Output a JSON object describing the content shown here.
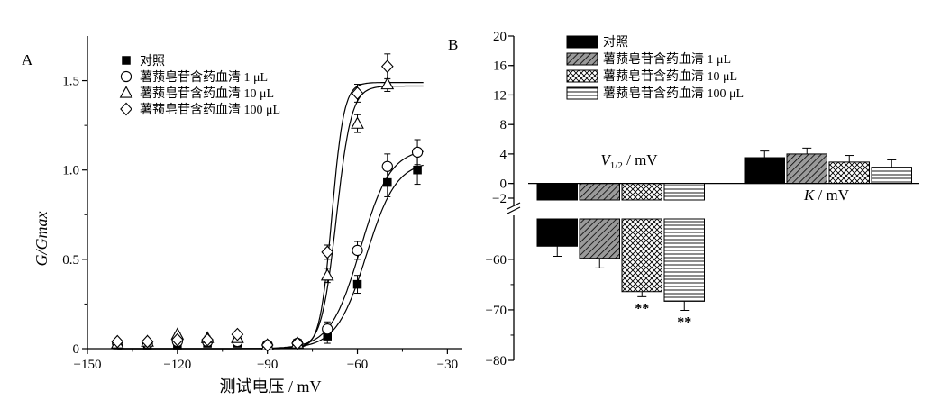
{
  "chart_data": [
    {
      "panel_label": "A",
      "type": "scatter",
      "xlabel": "测试电压 / mV",
      "ylabel": "G/Gmax",
      "xlim": [
        -150,
        -25
      ],
      "ylim": [
        0,
        1.75
      ],
      "xticks": [
        -150,
        -120,
        -90,
        -60,
        -30
      ],
      "xtick_labels": [
        "−150",
        "−120",
        "−90",
        "−60",
        "−30"
      ],
      "yticks": [
        0,
        0.5,
        1.0,
        1.5
      ],
      "ytick_labels": [
        "0",
        "0.5",
        "1.0",
        "1.5"
      ],
      "legend_position": "top-left",
      "x": [
        -140,
        -130,
        -120,
        -110,
        -100,
        -90,
        -80,
        -70,
        -60,
        -50,
        -40
      ],
      "series": [
        {
          "name": "对照",
          "marker": "filled-square",
          "values": [
            0.02,
            0.02,
            0.02,
            0.03,
            0.03,
            0.02,
            0.03,
            0.07,
            0.36,
            0.93,
            1.0
          ],
          "errors": [
            0.01,
            0.01,
            0.01,
            0.01,
            0.01,
            0.01,
            0.01,
            0.04,
            0.05,
            0.08,
            0.08
          ]
        },
        {
          "name": "薯蓣皂苷含药血清 1 μL",
          "marker": "open-circle",
          "values": [
            0.03,
            0.03,
            0.04,
            0.04,
            0.04,
            0.02,
            0.03,
            0.11,
            0.55,
            1.02,
            1.1
          ],
          "errors": [
            0.01,
            0.01,
            0.01,
            0.01,
            0.01,
            0.01,
            0.01,
            0.04,
            0.05,
            0.07,
            0.07
          ]
        },
        {
          "name": "薯蓣皂苷含药血清 10 μL",
          "marker": "open-triangle",
          "values": [
            0.03,
            0.04,
            0.08,
            0.06,
            0.06,
            0.02,
            0.03,
            0.41,
            1.26,
            1.48,
            null
          ],
          "errors": [
            0.01,
            0.01,
            0.01,
            0.01,
            0.01,
            0.01,
            0.01,
            0.04,
            0.05,
            0.04,
            null
          ]
        },
        {
          "name": "薯蓣皂苷含药血清 100 μL",
          "marker": "open-diamond",
          "values": [
            0.04,
            0.04,
            0.05,
            0.05,
            0.08,
            0.02,
            0.03,
            0.54,
            1.43,
            1.58,
            null
          ],
          "errors": [
            0.01,
            0.01,
            0.01,
            0.01,
            0.01,
            0.01,
            0.01,
            0.04,
            0.05,
            0.07,
            null
          ]
        }
      ],
      "fits": [
        {
          "series": "对照",
          "v_half": -57.0,
          "k": 5.0,
          "gmax": 1.05
        },
        {
          "series": "薯蓣皂苷含药血清 1 μL",
          "v_half": -59.0,
          "k": 5.0,
          "gmax": 1.12
        },
        {
          "series": "薯蓣皂苷含药血清 10 μL",
          "v_half": -67.0,
          "k": 2.5,
          "gmax": 1.47
        },
        {
          "series": "薯蓣皂苷含药血清 100 μL",
          "v_half": -68.5,
          "k": 2.0,
          "gmax": 1.49
        }
      ]
    },
    {
      "panel_label": "B",
      "type": "bar",
      "categories": [
        "V1/2 / mV",
        "K / mV"
      ],
      "category_labels": [
        {
          "main": "V",
          "sub": "1/2",
          "rest": " / mV"
        },
        {
          "main": "K",
          "sub": "",
          "rest": " / mV"
        }
      ],
      "axis_break": [
        -2,
        -52
      ],
      "ylim_upper": [
        -2,
        20
      ],
      "ylim_lower": [
        -80,
        -52
      ],
      "yticks": [
        20,
        16,
        12,
        8,
        4,
        0,
        -2,
        -60,
        -70,
        -80
      ],
      "ytick_labels": [
        "20",
        "16",
        "12",
        "8",
        "4",
        "0",
        "−2",
        "−60",
        "−70",
        "−80"
      ],
      "legend_position": "top-left",
      "series": [
        {
          "name": "对照",
          "fill": "solid-black",
          "values": [
            -57.4,
            3.5
          ],
          "errors": [
            2.0,
            0.9
          ],
          "significance": [
            "",
            ""
          ]
        },
        {
          "name": "薯蓣皂苷含药血清 1 μL",
          "fill": "diagonal-hatch",
          "values": [
            -59.8,
            4.0
          ],
          "errors": [
            1.9,
            0.8
          ],
          "significance": [
            "",
            ""
          ]
        },
        {
          "name": "薯蓣皂苷含药血清 10 μL",
          "fill": "cross-hatch",
          "values": [
            -66.4,
            2.9
          ],
          "errors": [
            1.0,
            0.9
          ],
          "significance": [
            "**",
            ""
          ]
        },
        {
          "name": "薯蓣皂苷含药血清 100 μL",
          "fill": "horizontal-lines",
          "values": [
            -68.3,
            2.2
          ],
          "errors": [
            1.8,
            1.0
          ],
          "significance": [
            "**",
            ""
          ]
        }
      ]
    }
  ]
}
